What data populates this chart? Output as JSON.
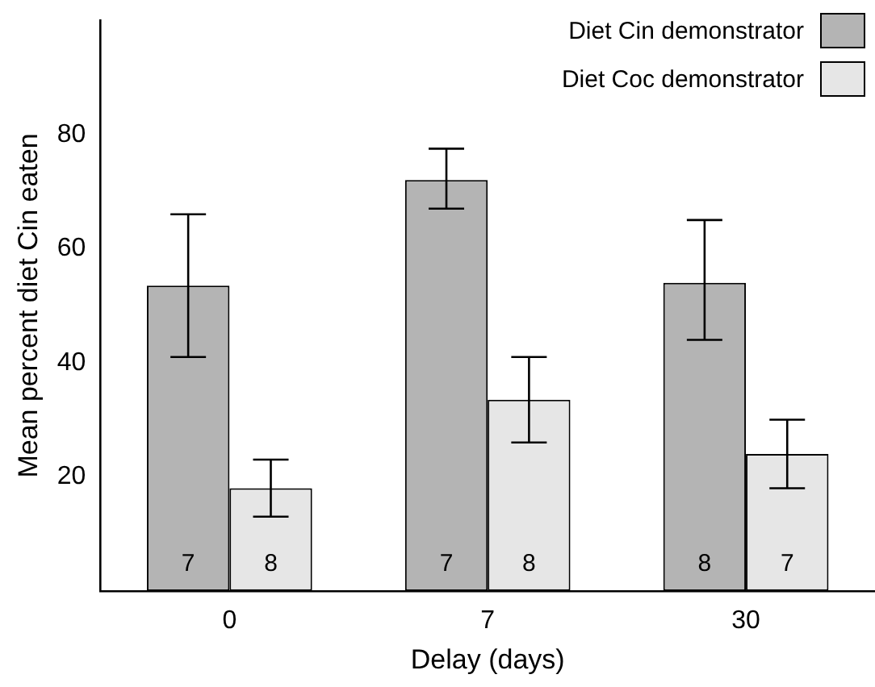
{
  "chart_data": {
    "type": "bar",
    "xlabel": "Delay (days)",
    "ylabel": "Mean percent diet Cin eaten",
    "categories": [
      "0",
      "7",
      "30"
    ],
    "series": [
      {
        "name": "Diet Cin demonstrator",
        "color": "#b4b4b4",
        "values": [
          53.5,
          72,
          54
        ],
        "errors": [
          [
            41,
            66
          ],
          [
            67,
            77.5
          ],
          [
            44,
            65
          ]
        ]
      },
      {
        "name": "Diet Coc demonstrator",
        "color": "#e6e6e6",
        "values": [
          18,
          33.5,
          24
        ],
        "errors": [
          [
            13,
            23
          ],
          [
            26,
            41
          ],
          [
            18,
            30
          ]
        ]
      }
    ],
    "annotations": [
      {
        "text": "7",
        "x": "0",
        "y": 3
      },
      {
        "text": "8",
        "x": "0",
        "y": 3
      },
      {
        "text": "7",
        "x": "7",
        "y": 3
      },
      {
        "text": "8",
        "x": "7",
        "y": 3
      },
      {
        "text": "8",
        "x": "30",
        "y": 3
      },
      {
        "text": "7",
        "x": "30",
        "y": 3
      }
    ],
    "ylim": [
      0,
      100
    ],
    "yticks": [
      20,
      40,
      60,
      80
    ],
    "grid": false,
    "legend": "top right"
  }
}
